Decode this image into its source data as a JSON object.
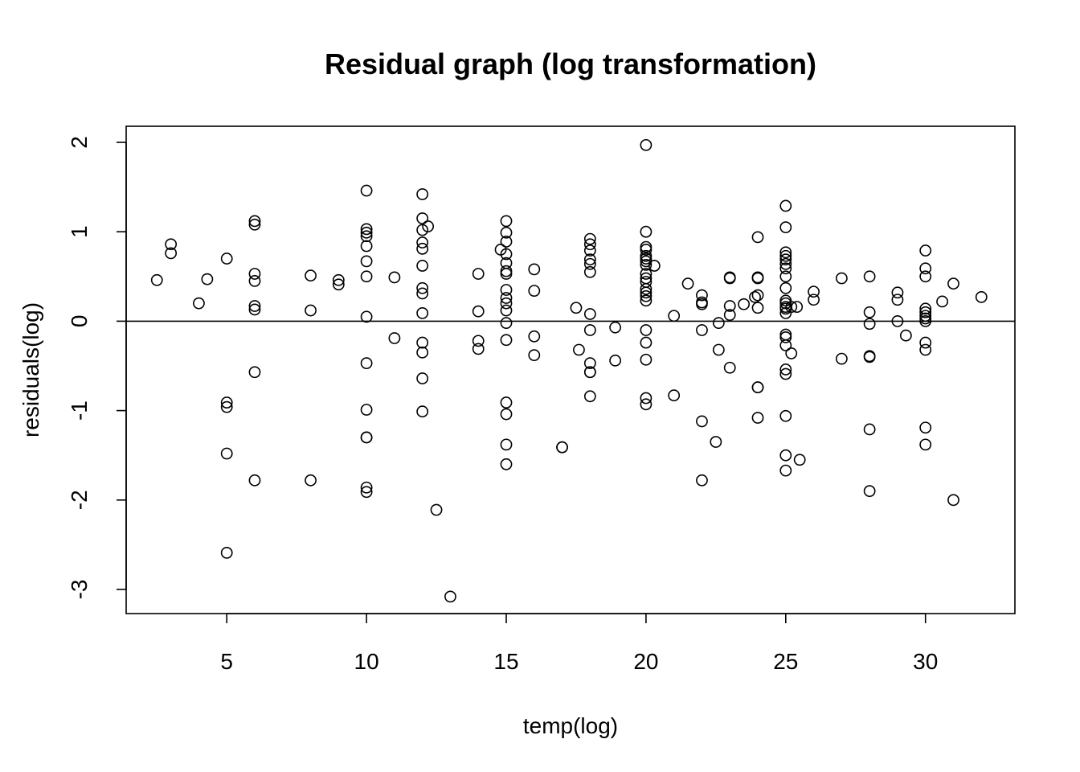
{
  "chart_data": {
    "type": "scatter",
    "title": "Residual graph (log transformation)",
    "xlabel": "temp(log)",
    "ylabel": "residuals(log)",
    "xlim": [
      1.4,
      33.2
    ],
    "ylim": [
      -3.27,
      2.18
    ],
    "xticks": [
      5,
      10,
      15,
      20,
      25,
      30
    ],
    "yticks": [
      -3,
      -2,
      -1,
      0,
      1,
      2
    ],
    "xtick_labels": [
      "5",
      "10",
      "15",
      "20",
      "25",
      "30"
    ],
    "ytick_labels": [
      "-3",
      "-2",
      "-1",
      "0",
      "1",
      "2"
    ],
    "reference_line_y": 0,
    "grid": false,
    "points": [
      [
        2.5,
        0.46
      ],
      [
        3,
        0.86
      ],
      [
        3,
        0.76
      ],
      [
        4,
        0.2
      ],
      [
        4.3,
        0.47
      ],
      [
        5,
        0.7
      ],
      [
        5,
        -0.91
      ],
      [
        5,
        -0.96
      ],
      [
        5,
        -1.48
      ],
      [
        5,
        -2.59
      ],
      [
        6,
        1.12
      ],
      [
        6,
        1.08
      ],
      [
        6,
        0.53
      ],
      [
        6,
        0.45
      ],
      [
        6,
        0.17
      ],
      [
        6,
        0.13
      ],
      [
        6,
        -0.57
      ],
      [
        6,
        -1.78
      ],
      [
        8,
        0.51
      ],
      [
        8,
        0.12
      ],
      [
        8,
        -1.78
      ],
      [
        9,
        0.46
      ],
      [
        9,
        0.41
      ],
      [
        10,
        1.46
      ],
      [
        10,
        1.03
      ],
      [
        10,
        0.99
      ],
      [
        10,
        0.95
      ],
      [
        10,
        0.84
      ],
      [
        10,
        0.67
      ],
      [
        10,
        0.5
      ],
      [
        10,
        0.05
      ],
      [
        10,
        -0.47
      ],
      [
        10,
        -0.99
      ],
      [
        10,
        -1.3
      ],
      [
        10,
        -1.3
      ],
      [
        10,
        -1.86
      ],
      [
        10,
        -1.91
      ],
      [
        11,
        0.49
      ],
      [
        11,
        -0.19
      ],
      [
        12,
        1.42
      ],
      [
        12,
        1.15
      ],
      [
        12,
        1.02
      ],
      [
        12,
        0.88
      ],
      [
        12,
        0.81
      ],
      [
        12,
        0.62
      ],
      [
        12,
        0.37
      ],
      [
        12,
        0.31
      ],
      [
        12,
        0.09
      ],
      [
        12,
        -0.24
      ],
      [
        12,
        -0.35
      ],
      [
        12,
        -0.64
      ],
      [
        12,
        -1.01
      ],
      [
        12.2,
        1.06
      ],
      [
        12.5,
        -2.11
      ],
      [
        13,
        -3.08
      ],
      [
        14,
        0.53
      ],
      [
        14,
        0.11
      ],
      [
        14,
        -0.22
      ],
      [
        14,
        -0.31
      ],
      [
        14.8,
        0.8
      ],
      [
        15,
        1.12
      ],
      [
        15,
        0.99
      ],
      [
        15,
        0.89
      ],
      [
        15,
        0.75
      ],
      [
        15,
        0.65
      ],
      [
        15,
        0.56
      ],
      [
        15,
        0.53
      ],
      [
        15,
        0.35
      ],
      [
        15,
        0.26
      ],
      [
        15,
        0.2
      ],
      [
        15,
        0.12
      ],
      [
        15,
        -0.02
      ],
      [
        15,
        -0.21
      ],
      [
        15,
        -0.91
      ],
      [
        15,
        -1.04
      ],
      [
        15,
        -1.38
      ],
      [
        15,
        -1.6
      ],
      [
        16,
        0.58
      ],
      [
        16,
        0.34
      ],
      [
        16,
        -0.17
      ],
      [
        16,
        -0.38
      ],
      [
        17,
        -1.41
      ],
      [
        17,
        -1.41
      ],
      [
        17.5,
        0.15
      ],
      [
        17.6,
        -0.32
      ],
      [
        18,
        0.92
      ],
      [
        18,
        0.86
      ],
      [
        18,
        0.79
      ],
      [
        18,
        0.69
      ],
      [
        18,
        0.64
      ],
      [
        18,
        0.55
      ],
      [
        18,
        0.08
      ],
      [
        18,
        -0.1
      ],
      [
        18,
        -0.47
      ],
      [
        18,
        -0.57
      ],
      [
        18,
        -0.57
      ],
      [
        18,
        -0.84
      ],
      [
        18.9,
        -0.07
      ],
      [
        18.9,
        -0.44
      ],
      [
        20,
        1.97
      ],
      [
        20,
        1.0
      ],
      [
        20,
        0.83
      ],
      [
        20,
        0.8
      ],
      [
        20,
        0.73
      ],
      [
        20,
        0.7
      ],
      [
        20,
        0.67
      ],
      [
        20,
        0.63
      ],
      [
        20,
        0.53
      ],
      [
        20,
        0.48
      ],
      [
        20,
        0.44
      ],
      [
        20,
        0.36
      ],
      [
        20,
        0.32
      ],
      [
        20,
        0.28
      ],
      [
        20,
        0.23
      ],
      [
        20,
        -0.1
      ],
      [
        20,
        -0.24
      ],
      [
        20,
        -0.43
      ],
      [
        20,
        -0.86
      ],
      [
        20,
        -0.93
      ],
      [
        20.3,
        0.62
      ],
      [
        21,
        0.06
      ],
      [
        21,
        -0.83
      ],
      [
        21.5,
        0.42
      ],
      [
        22,
        0.29
      ],
      [
        22,
        0.21
      ],
      [
        22,
        0.19
      ],
      [
        22,
        -0.1
      ],
      [
        22,
        -1.12
      ],
      [
        22,
        -1.78
      ],
      [
        22.5,
        -1.35
      ],
      [
        22.6,
        -0.02
      ],
      [
        22.6,
        -0.32
      ],
      [
        23,
        0.49
      ],
      [
        23,
        0.48
      ],
      [
        23,
        0.17
      ],
      [
        23,
        0.07
      ],
      [
        23,
        -0.52
      ],
      [
        23.5,
        0.19
      ],
      [
        23.9,
        0.27
      ],
      [
        24,
        0.94
      ],
      [
        24,
        0.49
      ],
      [
        24,
        0.48
      ],
      [
        24,
        0.29
      ],
      [
        24,
        0.15
      ],
      [
        24,
        -0.74
      ],
      [
        24,
        -0.74
      ],
      [
        24,
        -1.08
      ],
      [
        25,
        1.29
      ],
      [
        25,
        1.05
      ],
      [
        25,
        0.77
      ],
      [
        25,
        0.73
      ],
      [
        25,
        0.69
      ],
      [
        25,
        0.64
      ],
      [
        25,
        0.59
      ],
      [
        25,
        0.5
      ],
      [
        25,
        0.37
      ],
      [
        25,
        0.23
      ],
      [
        25,
        0.2
      ],
      [
        25,
        0.16
      ],
      [
        25,
        0.14
      ],
      [
        25,
        0.09
      ],
      [
        25,
        -0.15
      ],
      [
        25,
        -0.18
      ],
      [
        25,
        -0.27
      ],
      [
        25,
        -0.54
      ],
      [
        25,
        -0.59
      ],
      [
        25,
        -1.06
      ],
      [
        25,
        -1.5
      ],
      [
        25,
        -1.67
      ],
      [
        25.2,
        0.16
      ],
      [
        25.2,
        -0.36
      ],
      [
        25.4,
        0.16
      ],
      [
        25.5,
        -1.55
      ],
      [
        26,
        0.33
      ],
      [
        26,
        0.24
      ],
      [
        27,
        0.48
      ],
      [
        27,
        -0.42
      ],
      [
        28,
        0.5
      ],
      [
        28,
        0.1
      ],
      [
        28,
        -0.03
      ],
      [
        28,
        -0.39
      ],
      [
        28,
        -0.4
      ],
      [
        28,
        -1.21
      ],
      [
        28,
        -1.9
      ],
      [
        29,
        0.32
      ],
      [
        29,
        0.24
      ],
      [
        29,
        0.0
      ],
      [
        29.3,
        -0.16
      ],
      [
        30,
        0.79
      ],
      [
        30,
        0.59
      ],
      [
        30,
        0.5
      ],
      [
        30,
        0.14
      ],
      [
        30,
        0.1
      ],
      [
        30,
        0.06
      ],
      [
        30,
        0.03
      ],
      [
        30,
        0.0
      ],
      [
        30,
        -0.24
      ],
      [
        30,
        -0.32
      ],
      [
        30,
        -1.19
      ],
      [
        30,
        -1.38
      ],
      [
        30.6,
        0.22
      ],
      [
        31,
        0.42
      ],
      [
        31,
        -2.0
      ],
      [
        32,
        0.27
      ]
    ]
  }
}
